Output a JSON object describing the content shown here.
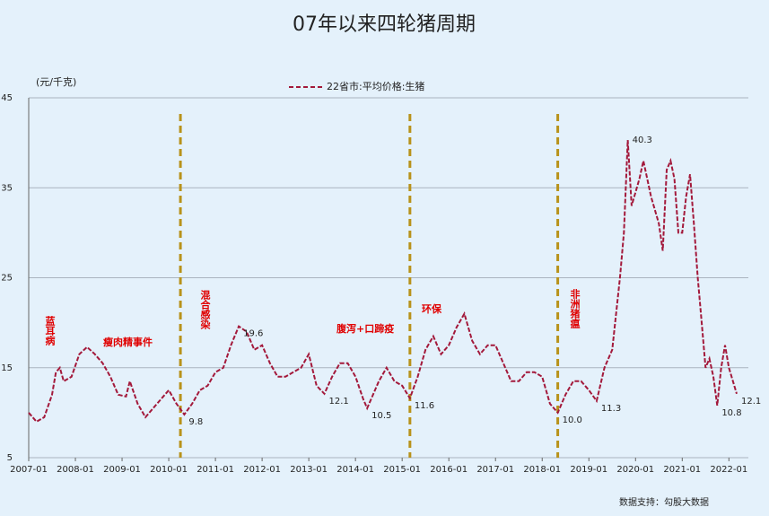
{
  "chart_data": {
    "type": "line",
    "title": "07年以来四轮猪周期",
    "y_label": "(元/千克)",
    "source": "数据支持：勾股大数据",
    "xlim": [
      "2007-01",
      "2022-06"
    ],
    "xticks": [
      "2007-01",
      "2008-01",
      "2009-01",
      "2010-01",
      "2011-01",
      "2012-01",
      "2013-01",
      "2014-01",
      "2015-01",
      "2016-01",
      "2017-01",
      "2018-01",
      "2019-01",
      "2020-01",
      "2021-01",
      "2022-01"
    ],
    "ylim": [
      5,
      45
    ],
    "yticks": [
      5,
      15,
      25,
      35,
      45
    ],
    "grid": true,
    "cycle_markers": [
      "2010-04",
      "2015-03",
      "2018-05"
    ],
    "annotations": [
      "蓝耳病",
      "瘦肉精事件",
      "混合感染",
      "腹泻+口蹄疫",
      "环保",
      "非洲猪瘟"
    ],
    "x": [
      "2007-01",
      "2007-03",
      "2007-05",
      "2007-07",
      "2007-08",
      "2007-09",
      "2007-10",
      "2007-12",
      "2008-02",
      "2008-04",
      "2008-06",
      "2008-08",
      "2008-10",
      "2008-12",
      "2009-02",
      "2009-03",
      "2009-05",
      "2009-07",
      "2009-09",
      "2009-11",
      "2010-01",
      "2010-03",
      "2010-05",
      "2010-07",
      "2010-09",
      "2010-11",
      "2011-01",
      "2011-03",
      "2011-05",
      "2011-07",
      "2011-09",
      "2011-11",
      "2012-01",
      "2012-03",
      "2012-05",
      "2012-07",
      "2012-09",
      "2012-11",
      "2013-01",
      "2013-03",
      "2013-05",
      "2013-07",
      "2013-09",
      "2013-11",
      "2014-01",
      "2014-03",
      "2014-04",
      "2014-07",
      "2014-09",
      "2014-11",
      "2015-01",
      "2015-03",
      "2015-05",
      "2015-07",
      "2015-09",
      "2015-11",
      "2016-01",
      "2016-03",
      "2016-05",
      "2016-07",
      "2016-09",
      "2016-11",
      "2017-01",
      "2017-03",
      "2017-05",
      "2017-07",
      "2017-09",
      "2017-11",
      "2018-01",
      "2018-03",
      "2018-05",
      "2018-07",
      "2018-09",
      "2018-11",
      "2019-01",
      "2019-03",
      "2019-05",
      "2019-07",
      "2019-09",
      "2019-10",
      "2019-11",
      "2019-12",
      "2020-02",
      "2020-03",
      "2020-05",
      "2020-07",
      "2020-08",
      "2020-09",
      "2020-10",
      "2020-11",
      "2020-12",
      "2021-01",
      "2021-02",
      "2021-03",
      "2021-04",
      "2021-05",
      "2021-06",
      "2021-07",
      "2021-08",
      "2021-09",
      "2021-10",
      "2021-11",
      "2021-12",
      "2022-01",
      "2022-03"
    ],
    "series": [
      {
        "name": "22省市:平均价格:生猪",
        "color": "#a3193b",
        "values": [
          10,
          9,
          9.5,
          12,
          14.5,
          15,
          13.5,
          14,
          16.5,
          17.3,
          16.5,
          15.5,
          14,
          12,
          11.8,
          13.5,
          11,
          9.5,
          10.5,
          11.5,
          12.5,
          11,
          9.8,
          11,
          12.5,
          13,
          14.5,
          15,
          17.5,
          19.6,
          19,
          17,
          17.5,
          15.5,
          14,
          14,
          14.5,
          15,
          16.5,
          13,
          12.1,
          14,
          15.5,
          15.5,
          14,
          11.5,
          10.5,
          13.5,
          15,
          13.5,
          13,
          11.6,
          14,
          17,
          18.5,
          16.5,
          17.5,
          19.5,
          21,
          18,
          16.5,
          17.5,
          17.5,
          15.5,
          13.5,
          13.5,
          14.5,
          14.5,
          14,
          11,
          10,
          12,
          13.5,
          13.5,
          12.5,
          11.3,
          15,
          17,
          25,
          30,
          40.3,
          33,
          36,
          38,
          34,
          31,
          28,
          37,
          38,
          36,
          30,
          30,
          34,
          36.5,
          31,
          25,
          20,
          15,
          16,
          14,
          10.8,
          15,
          17.5,
          15,
          12.1
        ],
        "value_labels": [
          null,
          null,
          null,
          null,
          null,
          null,
          null,
          null,
          null,
          null,
          null,
          null,
          null,
          null,
          null,
          null,
          null,
          null,
          null,
          null,
          null,
          null,
          "9.8",
          null,
          null,
          null,
          null,
          null,
          null,
          "19.6",
          null,
          null,
          null,
          null,
          null,
          null,
          null,
          null,
          null,
          null,
          "12.1",
          null,
          null,
          null,
          null,
          null,
          "10.5",
          null,
          null,
          null,
          null,
          "11.6",
          null,
          null,
          null,
          null,
          null,
          null,
          null,
          null,
          null,
          null,
          null,
          null,
          null,
          null,
          null,
          null,
          null,
          null,
          "10.0",
          null,
          null,
          null,
          null,
          "11.3",
          null,
          null,
          null,
          null,
          "40.3",
          null,
          null,
          null,
          null,
          null,
          null,
          null,
          null,
          null,
          null,
          null,
          null,
          null,
          null,
          null,
          null,
          null,
          null,
          null,
          "10.8",
          null,
          null,
          null,
          "12.1"
        ]
      }
    ]
  }
}
